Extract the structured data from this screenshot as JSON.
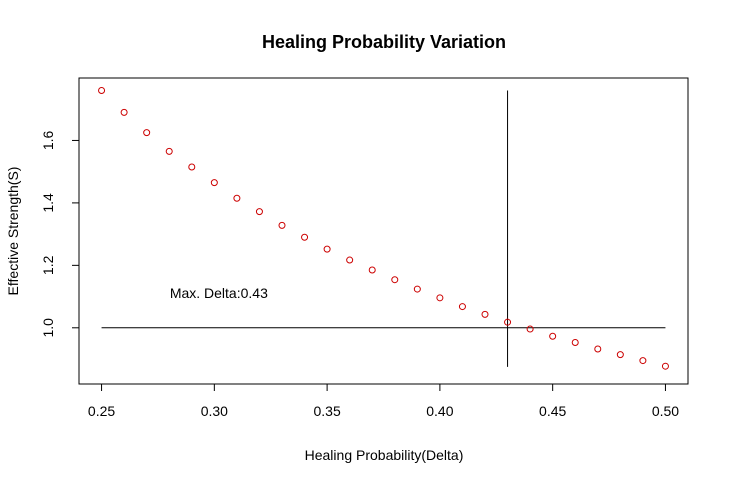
{
  "chart_data": {
    "type": "scatter",
    "title": "Healing Probability Variation",
    "xlabel": "Healing Probability(Delta)",
    "ylabel": "Effective Strength(S)",
    "xlim": [
      0.24,
      0.51
    ],
    "ylim": [
      0.82,
      1.8
    ],
    "xticks": [
      "0.25",
      "0.30",
      "0.35",
      "0.40",
      "0.45",
      "0.50"
    ],
    "yticks": [
      "1.0",
      "1.2",
      "1.4",
      "1.6"
    ],
    "grid": false,
    "marker_color": "#cc0000",
    "series": [
      {
        "x": [
          0.25,
          0.26,
          0.27,
          0.28,
          0.29,
          0.3,
          0.31,
          0.32,
          0.33,
          0.34,
          0.35,
          0.36,
          0.37,
          0.38,
          0.39,
          0.4,
          0.41,
          0.42,
          0.43,
          0.44,
          0.45,
          0.46,
          0.47,
          0.48,
          0.49,
          0.5
        ],
        "y": [
          1.76,
          1.69,
          1.625,
          1.565,
          1.515,
          1.465,
          1.415,
          1.372,
          1.328,
          1.29,
          1.252,
          1.217,
          1.185,
          1.154,
          1.124,
          1.096,
          1.068,
          1.043,
          1.018,
          0.996,
          0.973,
          0.953,
          0.932,
          0.914,
          0.895,
          0.877
        ]
      }
    ],
    "reference_lines": {
      "hline": {
        "y": 1.0,
        "x_from": 0.25,
        "x_to": 0.5
      },
      "vline": {
        "x": 0.43,
        "y_from": 0.875,
        "y_to": 1.76
      }
    },
    "annotation": {
      "text": "Max. Delta:0.43",
      "x": 0.302,
      "y": 1.095
    }
  }
}
